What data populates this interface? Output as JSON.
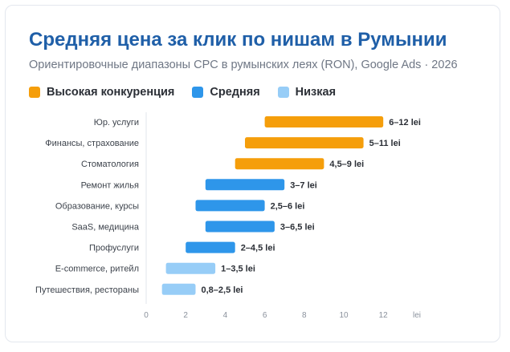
{
  "title": "Средняя цена за клик по нишам в Румынии",
  "subtitle": "Ориентировочные диапазоны CPC в румынских леях (RON), Google Ads · 2026",
  "legend": [
    {
      "label": "Высокая конкуренция",
      "color": "#f59e0b"
    },
    {
      "label": "Средняя",
      "color": "#2e96ea"
    },
    {
      "label": "Низкая",
      "color": "#97cdf7"
    }
  ],
  "chart_data": {
    "type": "bar",
    "orientation": "horizontal-range",
    "title": "Средняя цена за клик по нишам в Румынии",
    "subtitle": "Ориентировочные диапазоны CPC в румынских леях (RON), Google Ads · 2026",
    "xunit": "lei",
    "xlim": [
      0,
      14
    ],
    "xticks": [
      0,
      2,
      4,
      6,
      8,
      10,
      12
    ],
    "legend_position": "top-left",
    "grid": false,
    "categories": [
      {
        "name": "Юр. услуги",
        "low": 6,
        "high": 12,
        "label": "6–12 lei",
        "group": 0
      },
      {
        "name": "Финансы, страхование",
        "low": 5,
        "high": 11,
        "label": "5–11 lei",
        "group": 0
      },
      {
        "name": "Стоматология",
        "low": 4.5,
        "high": 9,
        "label": "4,5–9 lei",
        "group": 0
      },
      {
        "name": "Ремонт жилья",
        "low": 3,
        "high": 7,
        "label": "3–7 lei",
        "group": 1
      },
      {
        "name": "Образование, курсы",
        "low": 2.5,
        "high": 6,
        "label": "2,5–6 lei",
        "group": 1
      },
      {
        "name": "SaaS, медицина",
        "low": 3,
        "high": 6.5,
        "label": "3–6,5 lei",
        "group": 1
      },
      {
        "name": "Профуслуги",
        "low": 2,
        "high": 4.5,
        "label": "2–4,5 lei",
        "group": 1
      },
      {
        "name": "E-commerce, ритейл",
        "low": 1,
        "high": 3.5,
        "label": "1–3,5 lei",
        "group": 2
      },
      {
        "name": "Путешествия, рестораны",
        "low": 0.8,
        "high": 2.5,
        "label": "0,8–2,5 lei",
        "group": 2
      }
    ]
  }
}
